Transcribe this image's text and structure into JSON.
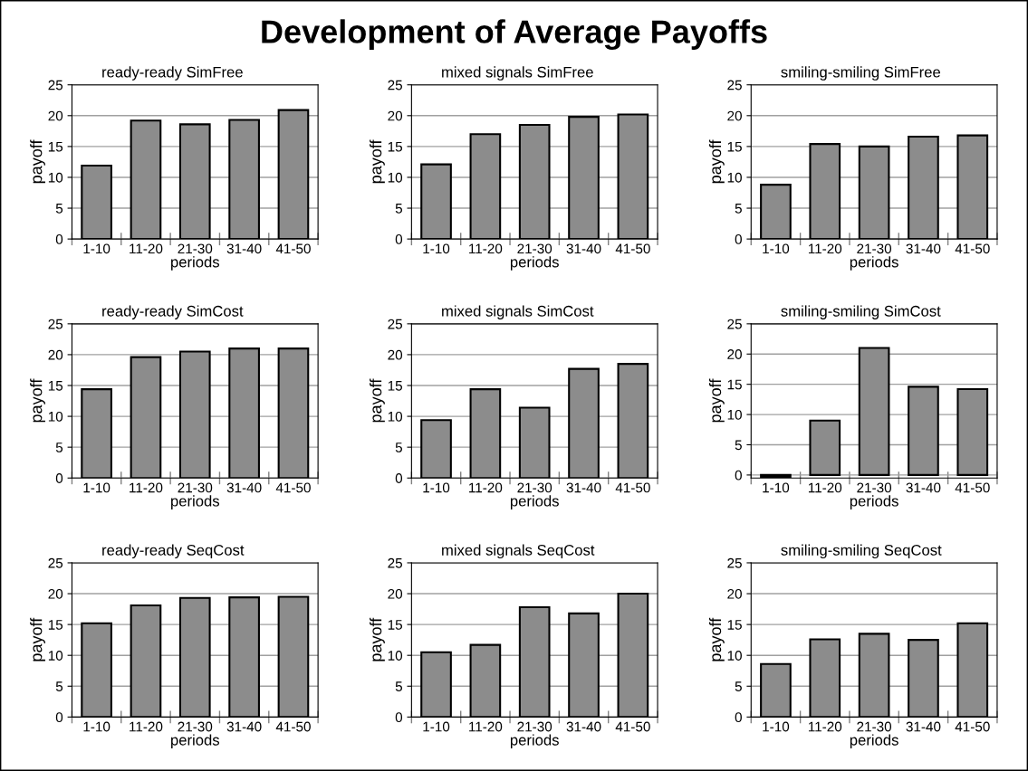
{
  "chart_data": [
    {
      "type": "bar",
      "title": "ready-ready SimFree",
      "annotations": [
        "Development of Average Payoffs"
      ],
      "xlabel": "periods",
      "ylabel": "payoff",
      "categories": [
        "1-10",
        "11-20",
        "21-30",
        "31-40",
        "41-50"
      ],
      "values": [
        11.9,
        19.2,
        18.6,
        19.3,
        20.9
      ],
      "color": "#8c8c8c",
      "ylim": [
        0,
        25
      ],
      "yticks": [
        0,
        5,
        10,
        15,
        20,
        25
      ],
      "grid": "y"
    },
    {
      "type": "bar",
      "title": "mixed signals SimFree",
      "xlabel": "periods",
      "ylabel": "payoff",
      "categories": [
        "1-10",
        "11-20",
        "21-30",
        "31-40",
        "41-50"
      ],
      "values": [
        12.1,
        17.0,
        18.5,
        19.8,
        20.2
      ],
      "color": "#8c8c8c",
      "ylim": [
        0,
        25
      ],
      "yticks": [
        0,
        5,
        10,
        15,
        20,
        25
      ],
      "grid": "y"
    },
    {
      "type": "bar",
      "title": "smiling-smiling SimFree",
      "xlabel": "periods",
      "ylabel": "payoff",
      "categories": [
        "1-10",
        "11-20",
        "21-30",
        "31-40",
        "41-50"
      ],
      "values": [
        8.8,
        15.4,
        15.0,
        16.6,
        16.8
      ],
      "color": "#8c8c8c",
      "ylim": [
        0,
        25
      ],
      "yticks": [
        0,
        5,
        10,
        15,
        20,
        25
      ],
      "grid": "y"
    },
    {
      "type": "bar",
      "title": "ready-ready SimCost",
      "xlabel": "periods",
      "ylabel": "payoff",
      "categories": [
        "1-10",
        "11-20",
        "21-30",
        "31-40",
        "41-50"
      ],
      "values": [
        14.4,
        19.6,
        20.5,
        21.0,
        21.0
      ],
      "color": "#8c8c8c",
      "ylim": [
        0,
        25
      ],
      "yticks": [
        0,
        5,
        10,
        15,
        20,
        25
      ],
      "grid": "y"
    },
    {
      "type": "bar",
      "title": "mixed signals SimCost",
      "xlabel": "periods",
      "ylabel": "payoff",
      "categories": [
        "1-10",
        "11-20",
        "21-30",
        "31-40",
        "41-50"
      ],
      "values": [
        9.4,
        14.4,
        11.4,
        17.7,
        18.5
      ],
      "color": "#8c8c8c",
      "ylim": [
        0,
        25
      ],
      "yticks": [
        0,
        5,
        10,
        15,
        20,
        25
      ],
      "grid": "y"
    },
    {
      "type": "bar",
      "title": "smiling-smiling SimCost",
      "xlabel": "periods",
      "ylabel": "payoff",
      "categories": [
        "1-10",
        "11-20",
        "21-30",
        "31-40",
        "41-50"
      ],
      "values": [
        -0.3,
        9.0,
        21.0,
        14.6,
        14.2
      ],
      "color": "#8c8c8c",
      "ylim": [
        -0.5,
        25
      ],
      "yticks": [
        0,
        5,
        10,
        15,
        20,
        25
      ],
      "grid": "y"
    },
    {
      "type": "bar",
      "title": "ready-ready SeqCost",
      "xlabel": "periods",
      "ylabel": "payoff",
      "categories": [
        "1-10",
        "11-20",
        "21-30",
        "31-40",
        "41-50"
      ],
      "values": [
        15.2,
        18.1,
        19.3,
        19.4,
        19.5
      ],
      "color": "#8c8c8c",
      "ylim": [
        0,
        25
      ],
      "yticks": [
        0,
        5,
        10,
        15,
        20,
        25
      ],
      "grid": "y"
    },
    {
      "type": "bar",
      "title": "mixed signals SeqCost",
      "xlabel": "periods",
      "ylabel": "payoff",
      "categories": [
        "1-10",
        "11-20",
        "21-30",
        "31-40",
        "41-50"
      ],
      "values": [
        10.5,
        11.7,
        17.8,
        16.8,
        20.0
      ],
      "color": "#8c8c8c",
      "ylim": [
        0,
        25
      ],
      "yticks": [
        0,
        5,
        10,
        15,
        20,
        25
      ],
      "grid": "y"
    },
    {
      "type": "bar",
      "title": "smiling-smiling SeqCost",
      "xlabel": "periods",
      "ylabel": "payoff",
      "categories": [
        "1-10",
        "11-20",
        "21-30",
        "31-40",
        "41-50"
      ],
      "values": [
        8.6,
        12.6,
        13.5,
        12.5,
        15.2
      ],
      "color": "#8c8c8c",
      "ylim": [
        0,
        25
      ],
      "yticks": [
        0,
        5,
        10,
        15,
        20,
        25
      ],
      "grid": "y"
    }
  ]
}
